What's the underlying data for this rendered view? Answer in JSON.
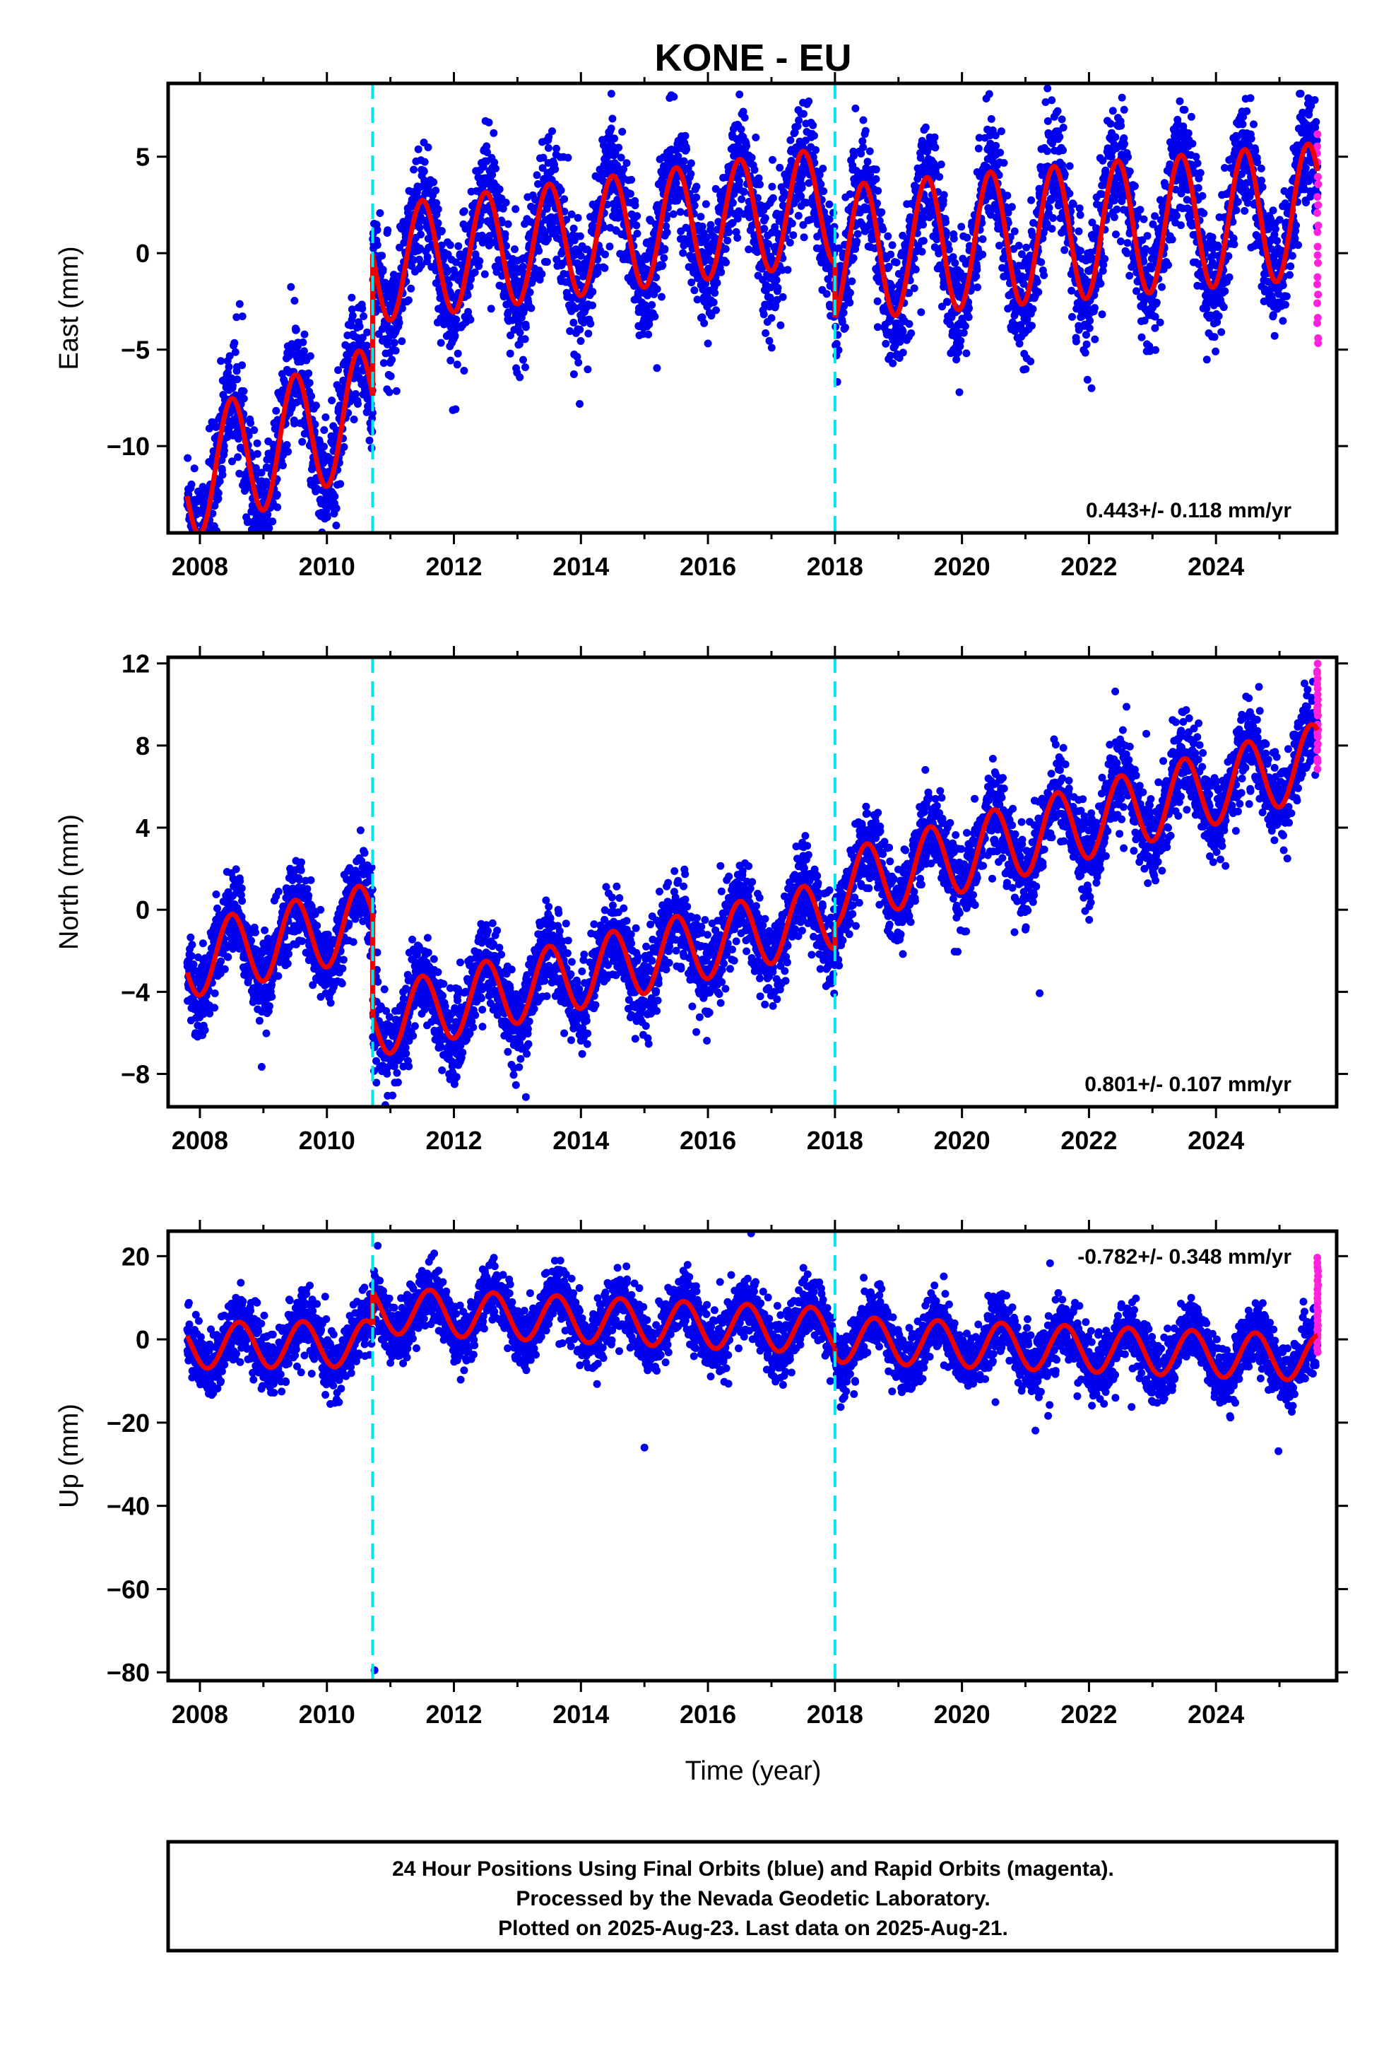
{
  "title": "KONE - EU",
  "xlabel": "Time (year)",
  "colors": {
    "final_orbits": "#0000ee",
    "rapid_orbits": "#ff22dd",
    "model": "#ee0000",
    "break_lines": "#00e5ee",
    "frame": "#000000"
  },
  "footer": {
    "lines": [
      "24 Hour Positions Using Final Orbits (blue) and Rapid Orbits (magenta).",
      "Processed by the Nevada Geodetic Laboratory.",
      "Plotted on 2025-Aug-23. Last data on 2025-Aug-21."
    ]
  },
  "chart_data": [
    {
      "type": "scatter",
      "component": "east",
      "ylabel": "East (mm)",
      "xlim": [
        2007.5,
        2025.9
      ],
      "ylim": [
        -14.5,
        8.8
      ],
      "xticks": [
        2008,
        2010,
        2012,
        2014,
        2016,
        2018,
        2020,
        2022,
        2024
      ],
      "yticks": [
        5,
        0,
        -5,
        -10
      ],
      "ytick_labels": [
        "5",
        "0",
        "−5",
        "−10"
      ],
      "rate_label": "0.443+/- 0.118 mm/yr",
      "rate_label_position": "bottom-right",
      "breaks": [
        2010.72,
        2018.0
      ],
      "model": {
        "segments": [
          {
            "start": 2007.8,
            "end": 2010.72,
            "v_start": -11.6,
            "v_end": -8.0,
            "amplitude": 3.2,
            "peak_phase": 0.5
          },
          {
            "start": 2010.72,
            "end": 2018.0,
            "v_start": -0.6,
            "v_end": 2.5,
            "amplitude": 3.0,
            "peak_phase": 0.5
          },
          {
            "start": 2018.0,
            "end": 2025.6,
            "v_start": 0.0,
            "v_end": 2.2,
            "amplitude": 3.5,
            "peak_phase": 0.45
          }
        ]
      },
      "rapid_orbits": {
        "x": 2025.6,
        "y_range": [
          -4.8,
          6.2
        ]
      },
      "scatter_noise_mm": 1.5
    },
    {
      "type": "scatter",
      "component": "north",
      "ylabel": "North (mm)",
      "xlim": [
        2007.5,
        2025.9
      ],
      "ylim": [
        -9.6,
        12.3
      ],
      "xticks": [
        2008,
        2010,
        2012,
        2014,
        2016,
        2018,
        2020,
        2022,
        2024
      ],
      "yticks": [
        12,
        8,
        4,
        0,
        -4,
        -8
      ],
      "ytick_labels": [
        "12",
        "8",
        "4",
        "0",
        "−4",
        "−8"
      ],
      "rate_label": "0.801+/- 0.107 mm/yr",
      "rate_label_position": "bottom-right",
      "breaks": [
        2010.72,
        2018.0
      ],
      "model": {
        "segments": [
          {
            "start": 2007.8,
            "end": 2010.72,
            "v_start": -2.5,
            "v_end": -0.5,
            "amplitude": 1.8,
            "peak_phase": 0.5
          },
          {
            "start": 2010.72,
            "end": 2018.0,
            "v_start": -5.5,
            "v_end": -0.2,
            "amplitude": 1.7,
            "peak_phase": 0.5
          },
          {
            "start": 2018.0,
            "end": 2025.6,
            "v_start": 1.0,
            "v_end": 7.3,
            "amplitude": 1.8,
            "peak_phase": 0.5
          }
        ]
      },
      "rapid_orbits": {
        "x": 2025.6,
        "y_range": [
          7.0,
          12.0
        ]
      },
      "scatter_noise_mm": 1.0
    },
    {
      "type": "scatter",
      "component": "up",
      "ylabel": "Up (mm)",
      "xlim": [
        2007.5,
        2025.9
      ],
      "ylim": [
        -82.0,
        26.0
      ],
      "xticks": [
        2008,
        2010,
        2012,
        2014,
        2016,
        2018,
        2020,
        2022,
        2024
      ],
      "yticks": [
        20,
        0,
        -20,
        -40,
        -60,
        -80
      ],
      "ytick_labels": [
        "20",
        "0",
        "−20",
        "−40",
        "−60",
        "−80"
      ],
      "rate_label": "-0.782+/- 0.348 mm/yr",
      "rate_label_position": "top-right",
      "breaks": [
        2010.72,
        2018.0
      ],
      "model": {
        "segments": [
          {
            "start": 2007.8,
            "end": 2010.72,
            "v_start": -1.5,
            "v_end": -1.0,
            "amplitude": 5.5,
            "peak_phase": 0.62
          },
          {
            "start": 2010.72,
            "end": 2018.0,
            "v_start": 7.0,
            "v_end": 2.0,
            "amplitude": 5.5,
            "peak_phase": 0.62
          },
          {
            "start": 2018.0,
            "end": 2025.6,
            "v_start": 0.0,
            "v_end": -4.5,
            "amplitude": 5.5,
            "peak_phase": 0.62
          }
        ]
      },
      "outliers": [
        {
          "x": 2010.75,
          "y": -79.5
        },
        {
          "x": 2010.8,
          "y": 22.5
        }
      ],
      "rapid_orbits": {
        "x": 2025.6,
        "y_range": [
          -3.0,
          19.5
        ]
      },
      "scatter_noise_mm": 3.5
    }
  ]
}
